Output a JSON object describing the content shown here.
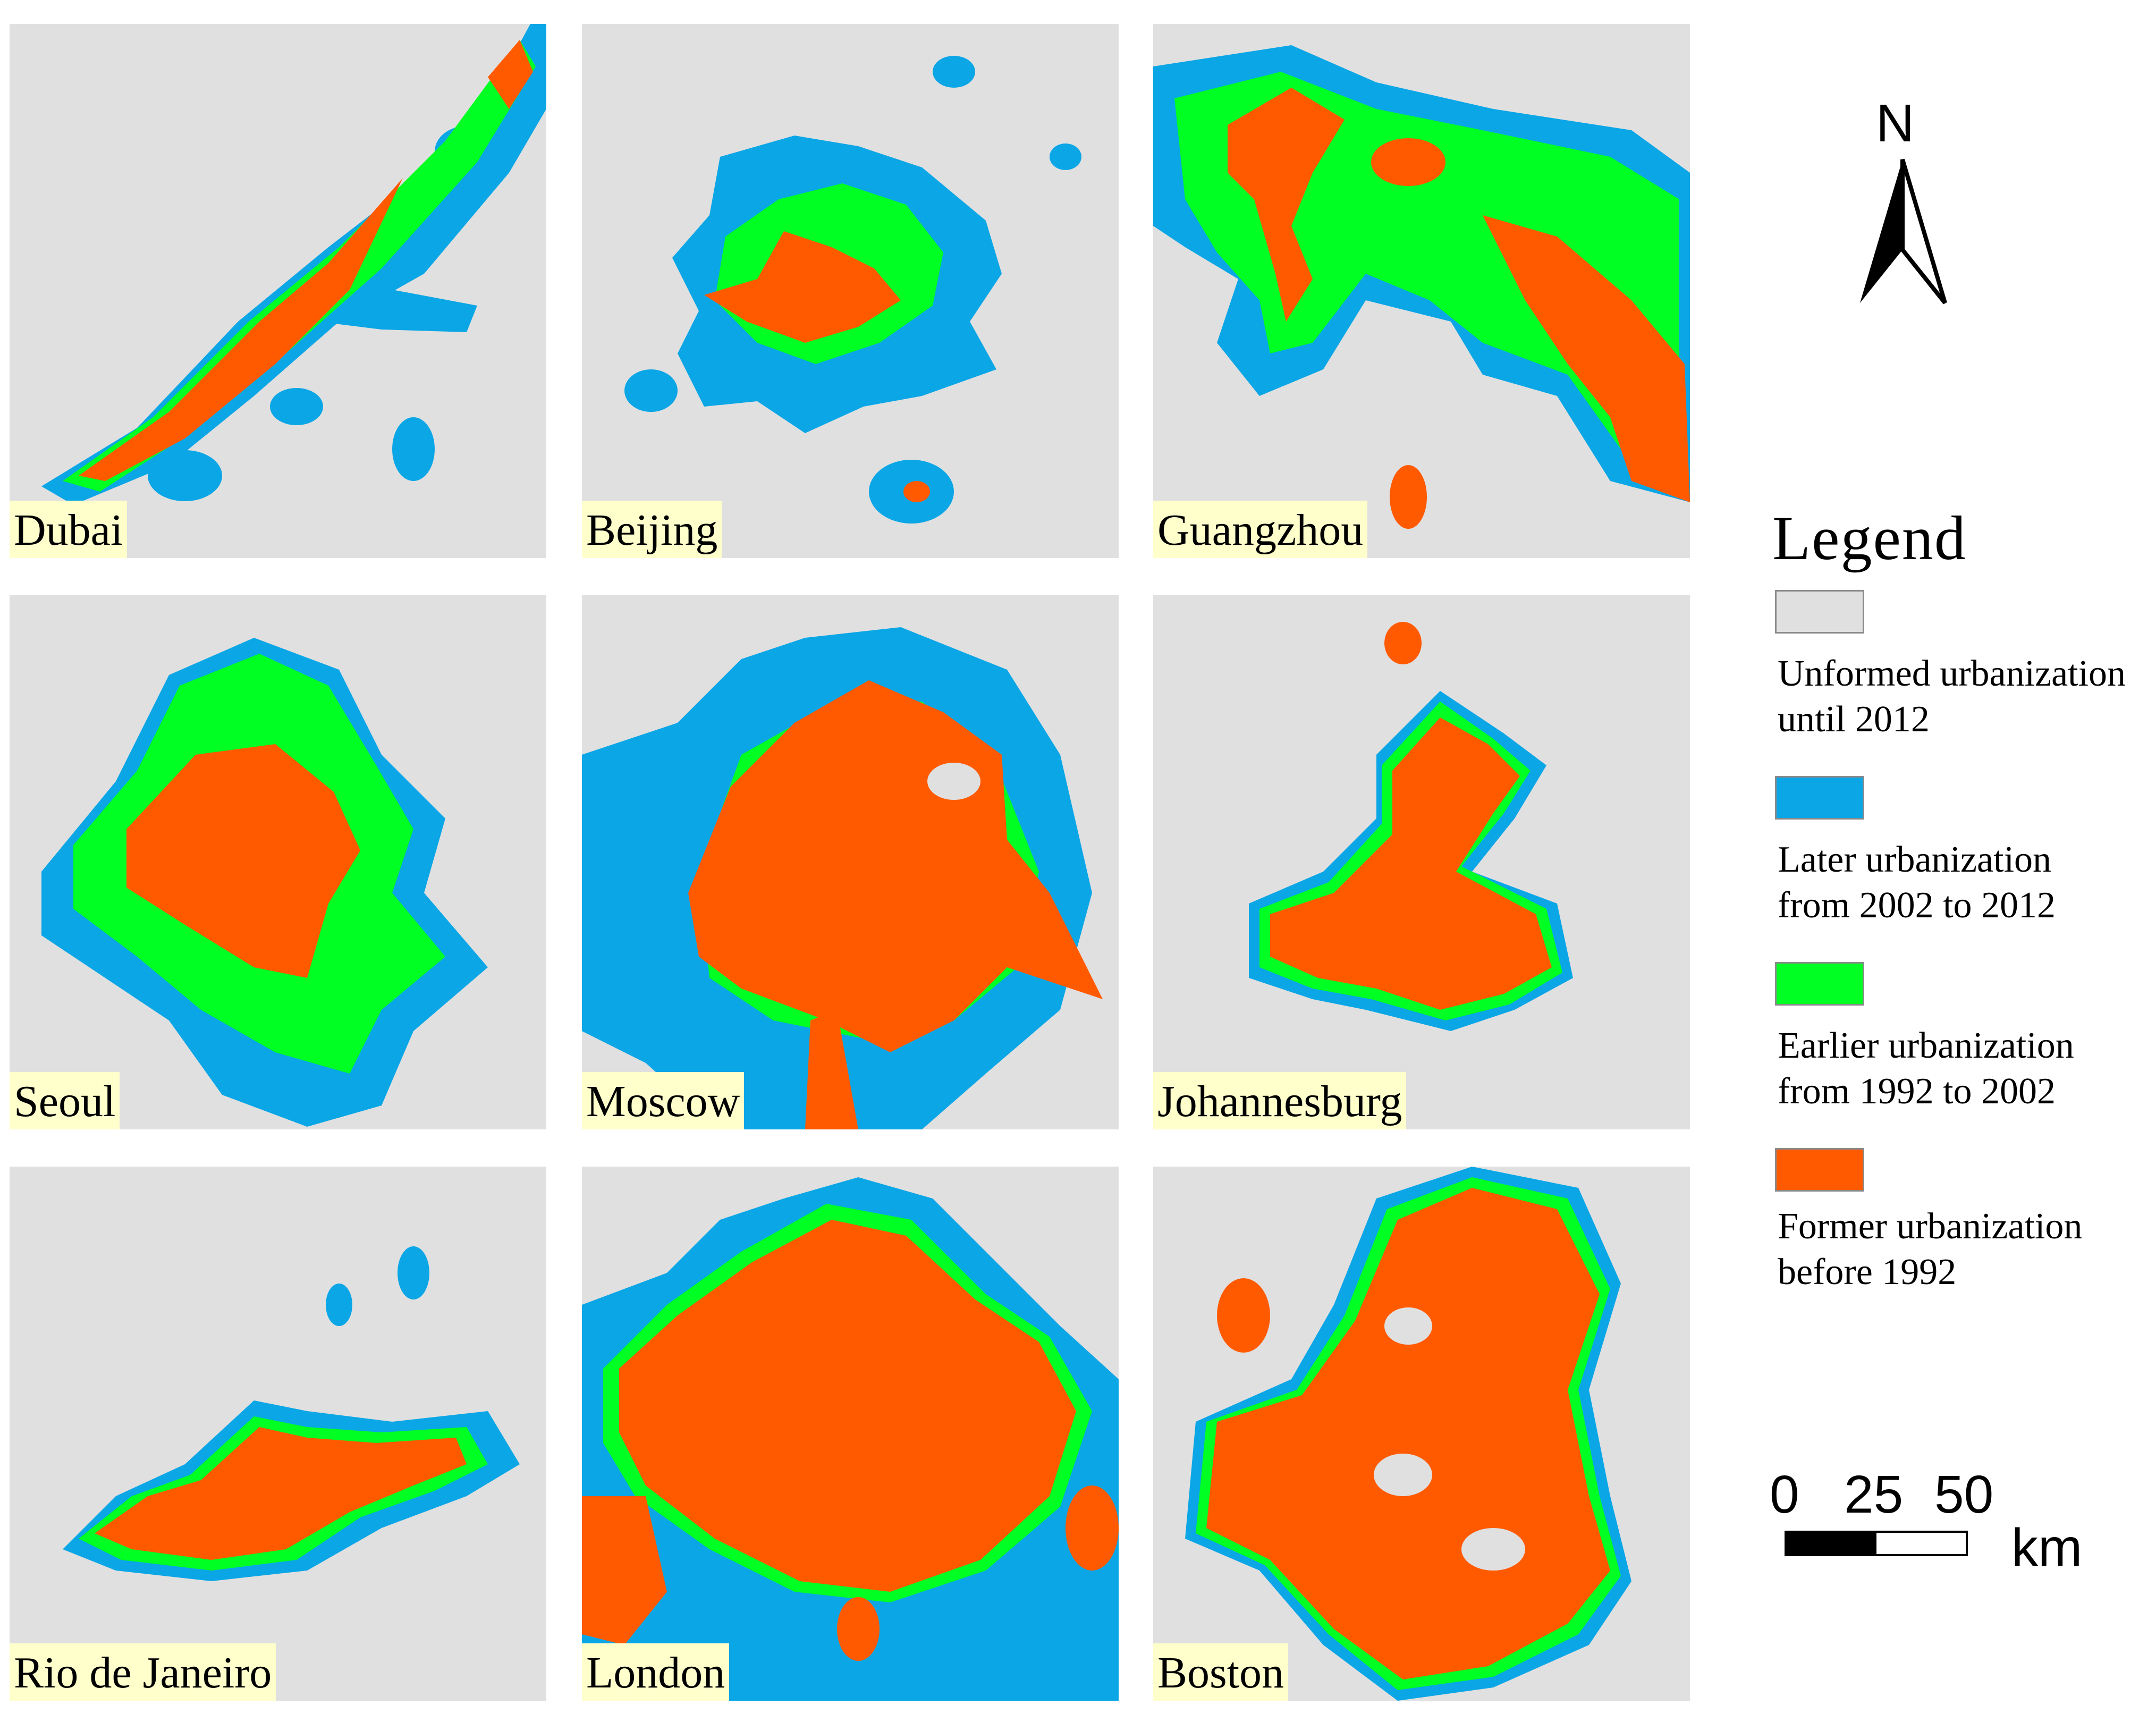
{
  "colors": {
    "unformed": "#e0e0e0",
    "later": "#0aa6e6",
    "earlier": "#00ff22",
    "former": "#ff5a00"
  },
  "cities": [
    {
      "name": "Dubai"
    },
    {
      "name": "Beijing"
    },
    {
      "name": "Guangzhou"
    },
    {
      "name": "Seoul"
    },
    {
      "name": "Moscow"
    },
    {
      "name": "Johannesburg"
    },
    {
      "name": "Rio de Janeiro"
    },
    {
      "name": "London"
    },
    {
      "name": "Boston"
    }
  ],
  "legend": {
    "title": "Legend",
    "items": [
      {
        "key": "unformed",
        "line1": "Unformed urbanization",
        "line2": "until 2012"
      },
      {
        "key": "later",
        "line1": "Later urbanization",
        "line2": "from 2002 to 2012"
      },
      {
        "key": "earlier",
        "line1": "Earlier urbanization",
        "line2": "from 1992 to 2002"
      },
      {
        "key": "former",
        "line1": "Former urbanization",
        "line2": "before 1992"
      }
    ]
  },
  "north_arrow": {
    "label": "N",
    "icon": "north-arrow-icon"
  },
  "scale_bar": {
    "ticks": [
      "0",
      "25",
      "50"
    ],
    "unit": "km"
  }
}
